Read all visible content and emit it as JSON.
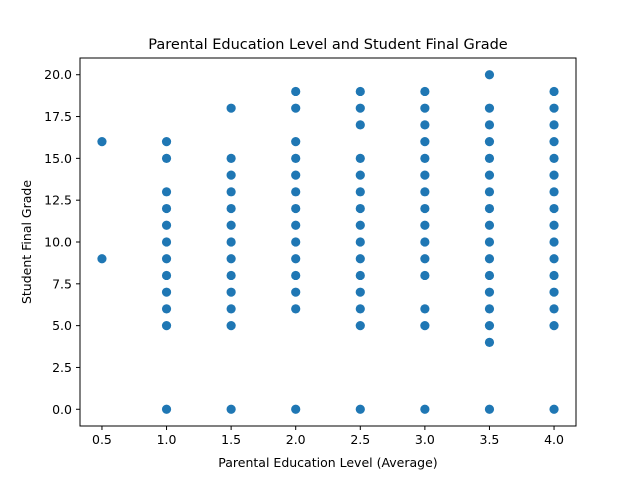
{
  "chart_data": {
    "type": "scatter",
    "title": "Parental Education Level and Student Final Grade",
    "xlabel": "Parental Education Level (Average)",
    "ylabel": "Student Final Grade",
    "xlim": [
      0.33,
      4.17
    ],
    "ylim": [
      -1.0,
      21.0
    ],
    "xticks": [
      0.5,
      1.0,
      1.5,
      2.0,
      2.5,
      3.0,
      3.5,
      4.0
    ],
    "yticks": [
      0.0,
      2.5,
      5.0,
      7.5,
      10.0,
      12.5,
      15.0,
      17.5,
      20.0
    ],
    "xtick_labels": [
      "0.5",
      "1.0",
      "1.5",
      "2.0",
      "2.5",
      "3.0",
      "3.5",
      "4.0"
    ],
    "ytick_labels": [
      "0.0",
      "2.5",
      "5.0",
      "7.5",
      "10.0",
      "12.5",
      "15.0",
      "17.5",
      "20.0"
    ],
    "grid": false,
    "marker_color": "#1f77b4",
    "series": [
      {
        "points": [
          {
            "x": 0.5,
            "y": 16
          },
          {
            "x": 0.5,
            "y": 9
          },
          {
            "x": 1.0,
            "y": 0
          },
          {
            "x": 1.0,
            "y": 5
          },
          {
            "x": 1.0,
            "y": 6
          },
          {
            "x": 1.0,
            "y": 7
          },
          {
            "x": 1.0,
            "y": 8
          },
          {
            "x": 1.0,
            "y": 9
          },
          {
            "x": 1.0,
            "y": 10
          },
          {
            "x": 1.0,
            "y": 11
          },
          {
            "x": 1.0,
            "y": 12
          },
          {
            "x": 1.0,
            "y": 13
          },
          {
            "x": 1.0,
            "y": 15
          },
          {
            "x": 1.0,
            "y": 16
          },
          {
            "x": 1.5,
            "y": 0
          },
          {
            "x": 1.5,
            "y": 5
          },
          {
            "x": 1.5,
            "y": 6
          },
          {
            "x": 1.5,
            "y": 7
          },
          {
            "x": 1.5,
            "y": 8
          },
          {
            "x": 1.5,
            "y": 9
          },
          {
            "x": 1.5,
            "y": 10
          },
          {
            "x": 1.5,
            "y": 11
          },
          {
            "x": 1.5,
            "y": 12
          },
          {
            "x": 1.5,
            "y": 13
          },
          {
            "x": 1.5,
            "y": 14
          },
          {
            "x": 1.5,
            "y": 15
          },
          {
            "x": 1.5,
            "y": 18
          },
          {
            "x": 2.0,
            "y": 0
          },
          {
            "x": 2.0,
            "y": 6
          },
          {
            "x": 2.0,
            "y": 7
          },
          {
            "x": 2.0,
            "y": 8
          },
          {
            "x": 2.0,
            "y": 9
          },
          {
            "x": 2.0,
            "y": 10
          },
          {
            "x": 2.0,
            "y": 11
          },
          {
            "x": 2.0,
            "y": 12
          },
          {
            "x": 2.0,
            "y": 13
          },
          {
            "x": 2.0,
            "y": 14
          },
          {
            "x": 2.0,
            "y": 15
          },
          {
            "x": 2.0,
            "y": 16
          },
          {
            "x": 2.0,
            "y": 18
          },
          {
            "x": 2.0,
            "y": 19
          },
          {
            "x": 2.5,
            "y": 0
          },
          {
            "x": 2.5,
            "y": 5
          },
          {
            "x": 2.5,
            "y": 6
          },
          {
            "x": 2.5,
            "y": 7
          },
          {
            "x": 2.5,
            "y": 8
          },
          {
            "x": 2.5,
            "y": 9
          },
          {
            "x": 2.5,
            "y": 10
          },
          {
            "x": 2.5,
            "y": 11
          },
          {
            "x": 2.5,
            "y": 12
          },
          {
            "x": 2.5,
            "y": 13
          },
          {
            "x": 2.5,
            "y": 14
          },
          {
            "x": 2.5,
            "y": 15
          },
          {
            "x": 2.5,
            "y": 17
          },
          {
            "x": 2.5,
            "y": 18
          },
          {
            "x": 2.5,
            "y": 19
          },
          {
            "x": 3.0,
            "y": 0
          },
          {
            "x": 3.0,
            "y": 5
          },
          {
            "x": 3.0,
            "y": 6
          },
          {
            "x": 3.0,
            "y": 8
          },
          {
            "x": 3.0,
            "y": 9
          },
          {
            "x": 3.0,
            "y": 10
          },
          {
            "x": 3.0,
            "y": 11
          },
          {
            "x": 3.0,
            "y": 12
          },
          {
            "x": 3.0,
            "y": 13
          },
          {
            "x": 3.0,
            "y": 14
          },
          {
            "x": 3.0,
            "y": 15
          },
          {
            "x": 3.0,
            "y": 16
          },
          {
            "x": 3.0,
            "y": 17
          },
          {
            "x": 3.0,
            "y": 18
          },
          {
            "x": 3.0,
            "y": 19
          },
          {
            "x": 3.5,
            "y": 0
          },
          {
            "x": 3.5,
            "y": 4
          },
          {
            "x": 3.5,
            "y": 5
          },
          {
            "x": 3.5,
            "y": 6
          },
          {
            "x": 3.5,
            "y": 7
          },
          {
            "x": 3.5,
            "y": 8
          },
          {
            "x": 3.5,
            "y": 9
          },
          {
            "x": 3.5,
            "y": 10
          },
          {
            "x": 3.5,
            "y": 11
          },
          {
            "x": 3.5,
            "y": 12
          },
          {
            "x": 3.5,
            "y": 13
          },
          {
            "x": 3.5,
            "y": 14
          },
          {
            "x": 3.5,
            "y": 15
          },
          {
            "x": 3.5,
            "y": 16
          },
          {
            "x": 3.5,
            "y": 17
          },
          {
            "x": 3.5,
            "y": 18
          },
          {
            "x": 3.5,
            "y": 20
          },
          {
            "x": 4.0,
            "y": 0
          },
          {
            "x": 4.0,
            "y": 5
          },
          {
            "x": 4.0,
            "y": 6
          },
          {
            "x": 4.0,
            "y": 7
          },
          {
            "x": 4.0,
            "y": 8
          },
          {
            "x": 4.0,
            "y": 9
          },
          {
            "x": 4.0,
            "y": 10
          },
          {
            "x": 4.0,
            "y": 11
          },
          {
            "x": 4.0,
            "y": 12
          },
          {
            "x": 4.0,
            "y": 13
          },
          {
            "x": 4.0,
            "y": 14
          },
          {
            "x": 4.0,
            "y": 15
          },
          {
            "x": 4.0,
            "y": 16
          },
          {
            "x": 4.0,
            "y": 17
          },
          {
            "x": 4.0,
            "y": 18
          },
          {
            "x": 4.0,
            "y": 19
          }
        ]
      }
    ]
  }
}
